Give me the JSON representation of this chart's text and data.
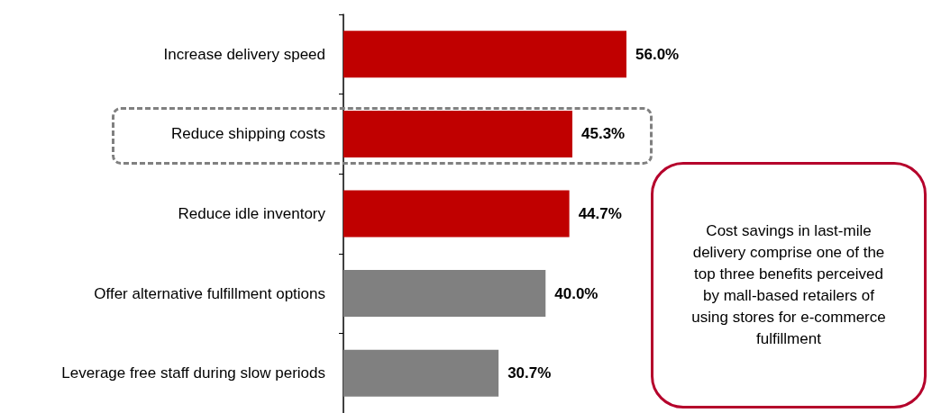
{
  "chart_data": {
    "type": "bar",
    "orientation": "horizontal",
    "categories": [
      "Increase delivery speed",
      "Reduce shipping costs",
      "Reduce idle inventory",
      "Offer alternative fulfillment options",
      "Leverage free staff during slow periods"
    ],
    "values": [
      56.0,
      45.3,
      44.7,
      40.0,
      30.7
    ],
    "colors": [
      "#c00000",
      "#c00000",
      "#c00000",
      "#808080",
      "#808080"
    ],
    "value_labels": [
      "56.0%",
      "45.3%",
      "44.7%",
      "40.0%",
      "30.7%"
    ],
    "annotations": [
      "Cost savings in last-mile delivery comprise one of the top three benefits perceived by mall-based retailers of using stores for e-commerce fulfillment"
    ],
    "grid": false
  }
}
